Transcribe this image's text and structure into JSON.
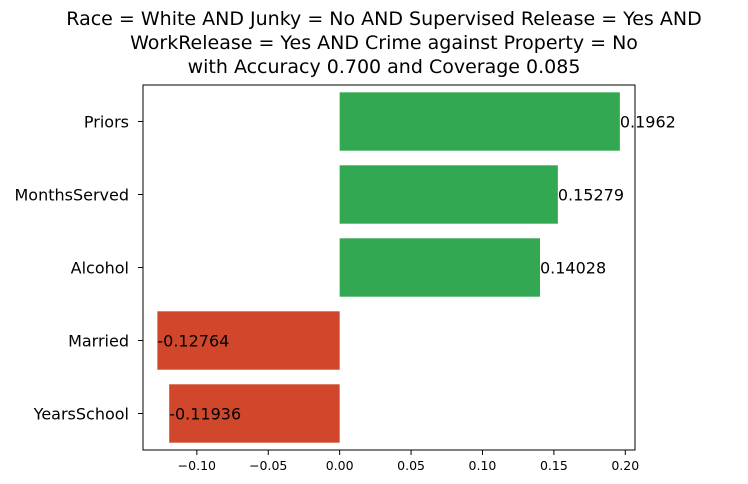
{
  "chart_data": {
    "type": "bar",
    "orientation": "horizontal",
    "title_lines": [
      "Race = White AND Junky = No AND Supervised Release = Yes AND",
      "WorkRelease = Yes AND Crime against Property = No",
      "with Accuracy 0.700 and Coverage 0.085"
    ],
    "categories": [
      "Priors",
      "MonthsServed",
      "Alcohol",
      "Married",
      "YearsSchool"
    ],
    "values": [
      0.1962,
      0.15279,
      0.14028,
      -0.12764,
      -0.11936
    ],
    "value_labels": [
      "0.1962",
      "0.15279",
      "0.14028",
      "-0.12764",
      "-0.11936"
    ],
    "xlim": [
      -0.1377,
      0.2068
    ],
    "xticks": [
      -0.1,
      -0.05,
      0.0,
      0.05,
      0.1,
      0.15,
      0.2
    ],
    "xtick_labels": [
      "−0.10",
      "−0.05",
      "0.00",
      "0.05",
      "0.10",
      "0.15",
      "0.20"
    ],
    "xlabel": "",
    "ylabel": "",
    "grid": false,
    "colors": {
      "positive": "#33a853",
      "negative": "#d0472b"
    }
  }
}
